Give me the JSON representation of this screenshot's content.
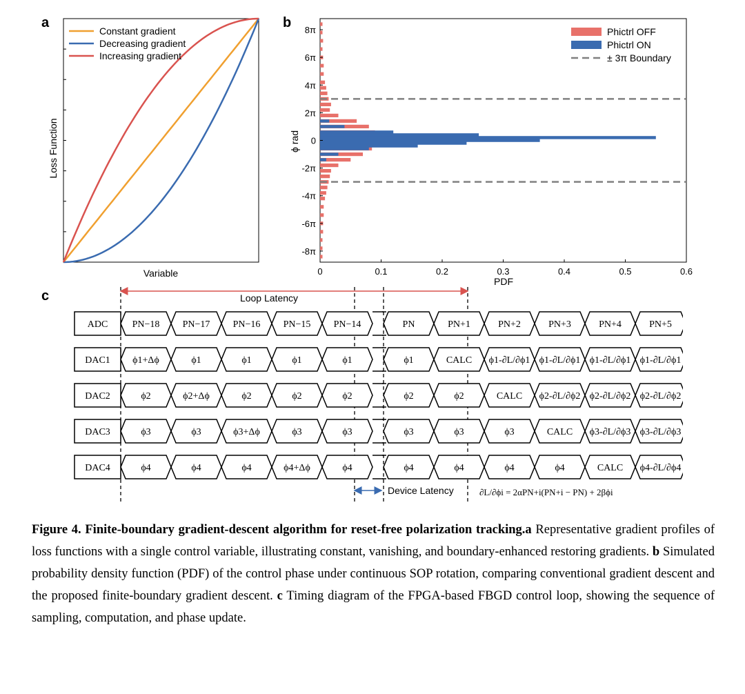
{
  "panels": {
    "a": "a",
    "b": "b",
    "c": "c"
  },
  "chart_data": [
    {
      "type": "line",
      "panel": "a",
      "xlabel": "Variable",
      "ylabel": "Loss Function",
      "xlim": [
        0,
        1
      ],
      "ylim": [
        0,
        1
      ],
      "legend_position": "top-left",
      "series": [
        {
          "name": "Constant gradient",
          "color": "#f0a030",
          "x": [
            0,
            0.25,
            0.5,
            0.75,
            1
          ],
          "y": [
            0,
            0.25,
            0.5,
            0.75,
            1
          ]
        },
        {
          "name": "Decreasing gradient",
          "color": "#3a6bb0",
          "x": [
            0,
            0.25,
            0.5,
            0.75,
            1
          ],
          "y": [
            0,
            0.06,
            0.25,
            0.56,
            1
          ]
        },
        {
          "name": "Increasing gradient",
          "color": "#d9534f",
          "x": [
            0,
            0.25,
            0.5,
            0.75,
            1
          ],
          "y": [
            0,
            0.44,
            0.75,
            0.94,
            1
          ]
        }
      ]
    },
    {
      "type": "bar",
      "orientation": "horizontal",
      "panel": "b",
      "xlabel": "PDF",
      "ylabel": "ϕ rad",
      "xlim": [
        0,
        0.6
      ],
      "ylim": [
        -8.8,
        8.8
      ],
      "xticks": [
        "0",
        "0.1",
        "0.2",
        "0.3",
        "0.4",
        "0.5",
        "0.6"
      ],
      "yticks": [
        "8π",
        "6π",
        "4π",
        "2π",
        "0",
        "-2π",
        "-4π",
        "-6π",
        "-8π"
      ],
      "legend_position": "top-right",
      "boundary": {
        "name": "± 3π Boundary",
        "y": [
          3,
          -3
        ],
        "color": "#808080"
      },
      "series": [
        {
          "name": "Phictrl OFF",
          "color": "#e8716a",
          "y": [
            8.4,
            7.8,
            7.2,
            6.6,
            6.0,
            5.4,
            4.8,
            4.2,
            3.8,
            3.4,
            3.0,
            2.6,
            2.2,
            1.8,
            1.4,
            1.0,
            0.6,
            0.2,
            -0.2,
            -0.6,
            -1.0,
            -1.4,
            -1.8,
            -2.2,
            -2.6,
            -3.0,
            -3.4,
            -3.8,
            -4.2,
            -4.8,
            -5.4,
            -6.0,
            -6.6,
            -7.2,
            -7.8,
            -8.4
          ],
          "values": [
            0.004,
            0.004,
            0.005,
            0.004,
            0.005,
            0.006,
            0.006,
            0.008,
            0.01,
            0.012,
            0.014,
            0.018,
            0.016,
            0.03,
            0.06,
            0.08,
            0.09,
            0.095,
            0.09,
            0.085,
            0.07,
            0.05,
            0.03,
            0.018,
            0.016,
            0.014,
            0.012,
            0.01,
            0.008,
            0.006,
            0.006,
            0.005,
            0.005,
            0.004,
            0.004,
            0.004
          ]
        },
        {
          "name": "Phictrl ON",
          "color": "#3a6bb0",
          "y": [
            1.4,
            1.0,
            0.6,
            0.4,
            0.2,
            0.0,
            -0.2,
            -0.4,
            -0.6,
            -1.0,
            -1.4
          ],
          "values": [
            0.015,
            0.04,
            0.12,
            0.26,
            0.55,
            0.36,
            0.24,
            0.16,
            0.08,
            0.03,
            0.01
          ]
        }
      ]
    }
  ],
  "timing": {
    "loop_latency": "Loop Latency",
    "device_latency": "Device Latency",
    "formula": "∂L/∂ϕi = 2αPN+i(PN+i − PN) + 2βϕi",
    "rows": [
      {
        "label": "ADC",
        "cells": [
          "PN−18",
          "PN−17",
          "PN−16",
          "PN−15",
          "PN−14",
          "PN",
          "PN+1",
          "PN+2",
          "PN+3",
          "PN+4",
          "PN+5"
        ]
      },
      {
        "label": "DAC1",
        "cells": [
          "ϕ1+Δϕ",
          "ϕ1",
          "ϕ1",
          "ϕ1",
          "ϕ1",
          "ϕ1",
          "CALC",
          "ϕ1-∂L/∂ϕ1",
          "ϕ1-∂L/∂ϕ1",
          "ϕ1-∂L/∂ϕ1",
          "ϕ1-∂L/∂ϕ1"
        ]
      },
      {
        "label": "DAC2",
        "cells": [
          "ϕ2",
          "ϕ2+Δϕ",
          "ϕ2",
          "ϕ2",
          "ϕ2",
          "ϕ2",
          "ϕ2",
          "CALC",
          "ϕ2-∂L/∂ϕ2",
          "ϕ2-∂L/∂ϕ2",
          "ϕ2-∂L/∂ϕ2"
        ]
      },
      {
        "label": "DAC3",
        "cells": [
          "ϕ3",
          "ϕ3",
          "ϕ3+Δϕ",
          "ϕ3",
          "ϕ3",
          "ϕ3",
          "ϕ3",
          "ϕ3",
          "CALC",
          "ϕ3-∂L/∂ϕ3",
          "ϕ3-∂L/∂ϕ3"
        ]
      },
      {
        "label": "DAC4",
        "cells": [
          "ϕ4",
          "ϕ4",
          "ϕ4",
          "ϕ4+Δϕ",
          "ϕ4",
          "ϕ4",
          "ϕ4",
          "ϕ4",
          "ϕ4",
          "CALC",
          "ϕ4-∂L/∂ϕ4"
        ]
      }
    ]
  },
  "caption": {
    "title": "Figure 4. Finite-boundary gradient-descent algorithm for reset-free polarization tracking.",
    "a_label": "a",
    "a_text": " Representative gradient profiles of loss functions with a single control variable, illustrating constant, vanishing, and boundary-enhanced restoring gradients. ",
    "b_label": "b",
    "b_text": " Simulated probability density function (PDF) of the control phase under continuous SOP rotation, comparing conventional gradient descent and the proposed finite-boundary gradient descent. ",
    "c_label": "c",
    "c_text": " Timing diagram of the FPGA-based FBGD control loop, showing the sequence of sampling, computation, and phase update."
  }
}
